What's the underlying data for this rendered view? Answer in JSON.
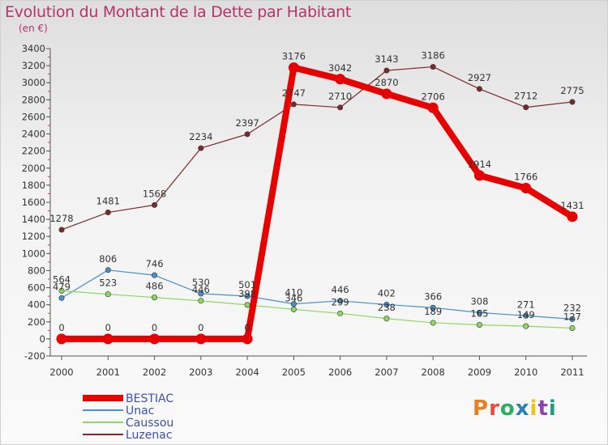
{
  "title": "Evolution du Montant de la Dette par Habitant",
  "subtitle": "(en €)",
  "logo": {
    "text": "Proxiti",
    "colors": [
      "#e67e22",
      "#e74c3c",
      "#27ae60",
      "#2980b9",
      "#f1c40f",
      "#8e44ad",
      "#16a085"
    ]
  },
  "chart_data": {
    "type": "line",
    "x": [
      "2000",
      "2001",
      "2002",
      "2003",
      "2004",
      "2005",
      "2006",
      "2007",
      "2008",
      "2009",
      "2010",
      "2011"
    ],
    "ylim": [
      -200,
      3400
    ],
    "yticks": [
      -200,
      0,
      200,
      400,
      600,
      800,
      1000,
      1200,
      1400,
      1600,
      1800,
      2000,
      2200,
      2400,
      2600,
      2800,
      3000,
      3200,
      3400
    ],
    "grid": false,
    "legend_position": "bottom-left",
    "series": [
      {
        "name": "BESTIAC",
        "color": "#e60000",
        "width": 8,
        "values": [
          0,
          0,
          0,
          0,
          0,
          3176,
          3042,
          2870,
          2706,
          1914,
          1766,
          1431
        ]
      },
      {
        "name": "Unac",
        "color": "#4a8fcc",
        "width": 1.2,
        "values": [
          479,
          806,
          746,
          530,
          501,
          410,
          446,
          402,
          366,
          308,
          271,
          232
        ]
      },
      {
        "name": "Caussou",
        "color": "#8fd860",
        "width": 1.2,
        "values": [
          564,
          523,
          486,
          446,
          398,
          346,
          299,
          238,
          189,
          165,
          149,
          127
        ]
      },
      {
        "name": "Luzenac",
        "color": "#7a2a2a",
        "width": 1.2,
        "values": [
          1278,
          1481,
          1568,
          2234,
          2397,
          2747,
          2710,
          3143,
          3186,
          2927,
          2712,
          2775
        ]
      }
    ]
  }
}
